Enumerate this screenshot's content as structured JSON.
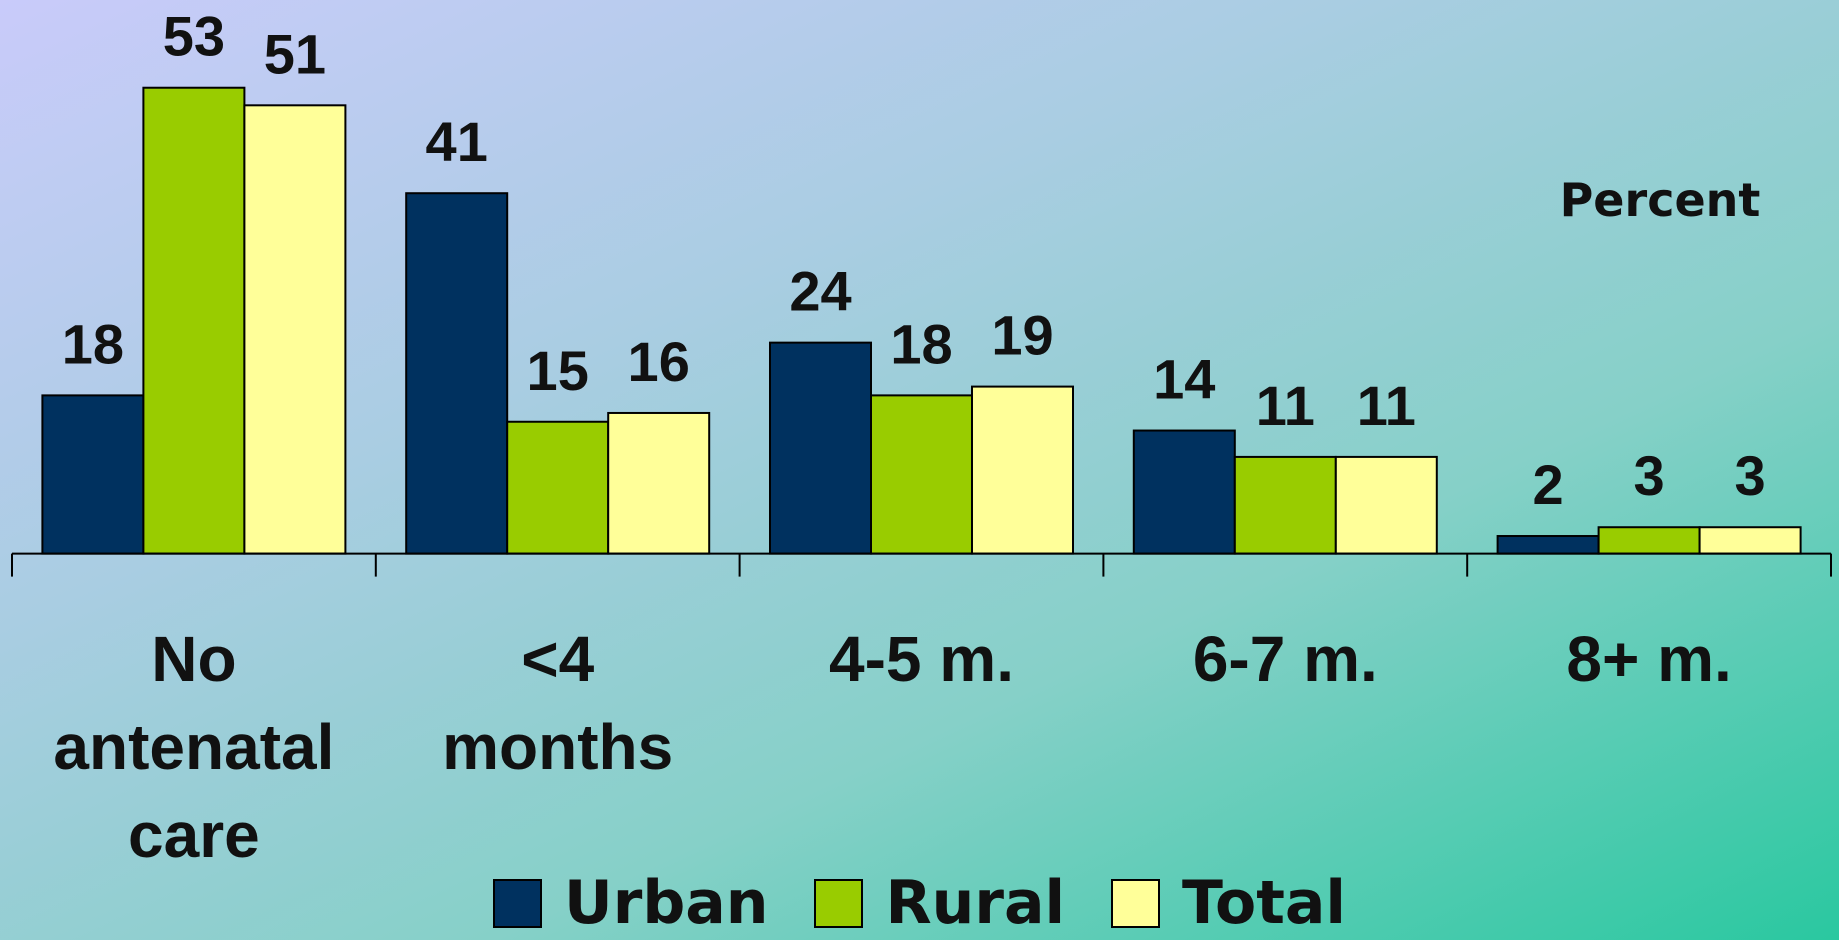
{
  "chart_data": {
    "type": "bar",
    "categories": [
      "No antenatal care",
      "<4 months",
      "4-5 m.",
      "6-7 m.",
      "8+ m."
    ],
    "series": [
      {
        "name": "Urban",
        "color": "#00315f",
        "values": [
          18,
          41,
          24,
          14,
          2
        ]
      },
      {
        "name": "Rural",
        "color": "#99cc00",
        "values": [
          53,
          15,
          18,
          11,
          3
        ]
      },
      {
        "name": "Total",
        "color": "#ffff99",
        "values": [
          51,
          16,
          19,
          11,
          3
        ]
      }
    ],
    "annotation": "Percent",
    "legend": "bottom"
  }
}
